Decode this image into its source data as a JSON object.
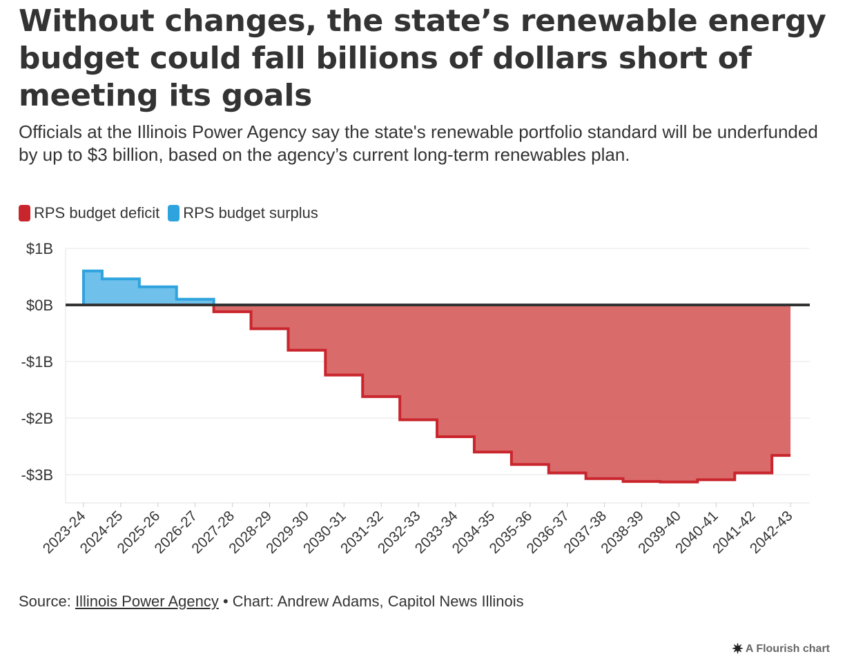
{
  "title": "Without changes, the state’s renewable energy budget could fall billions of dollars short of meeting its goals",
  "subtitle": "Officials at the Illinois Power Agency say the state's renewable portfolio standard will be underfunded by up to $3 billion, based on the agency’s current long-term renewables plan.",
  "legend": [
    {
      "label": "RPS budget deficit",
      "color": "#c9252c"
    },
    {
      "label": "RPS budget surplus",
      "color": "#2fa3de"
    }
  ],
  "footer": {
    "source_prefix": "Source: ",
    "source_link": "Illinois Power Agency",
    "chart_credit": " • Chart: Andrew Adams, Capitol News Illinois"
  },
  "flourish_credit": "A Flourish chart",
  "chart_data": {
    "type": "area",
    "title": "",
    "xlabel": "",
    "ylabel": "",
    "step": true,
    "ylim": [
      -3.5,
      1.0
    ],
    "y_ticks": [
      {
        "value": 1,
        "label": "$1B"
      },
      {
        "value": 0,
        "label": "$0B"
      },
      {
        "value": -1,
        "label": "-$1B"
      },
      {
        "value": -2,
        "label": "-$2B"
      },
      {
        "value": -3,
        "label": "-$3B"
      }
    ],
    "categories": [
      "2023-24",
      "2024-25",
      "2025-26",
      "2026-27",
      "2027-28",
      "2028-29",
      "2029-30",
      "2030-31",
      "2031-32",
      "2032-33",
      "2033-34",
      "2034-35",
      "2035-36",
      "2036-37",
      "2037-38",
      "2038-39",
      "2039-40",
      "2040-41",
      "2041-42",
      "2042-43"
    ],
    "values": [
      0.6,
      0.46,
      0.32,
      0.1,
      -0.12,
      -0.42,
      -0.8,
      -1.24,
      -1.62,
      -2.03,
      -2.33,
      -2.6,
      -2.82,
      -2.97,
      -3.07,
      -3.12,
      -3.13,
      -3.09,
      -2.97,
      -2.66
    ],
    "series": [
      {
        "name": "RPS budget deficit",
        "color": "#c9252c",
        "fill": "#d35151"
      },
      {
        "name": "RPS budget surplus",
        "color": "#2fa3de",
        "fill": "#6fc1ec"
      }
    ],
    "grid": true,
    "legend_position": "top-left"
  }
}
